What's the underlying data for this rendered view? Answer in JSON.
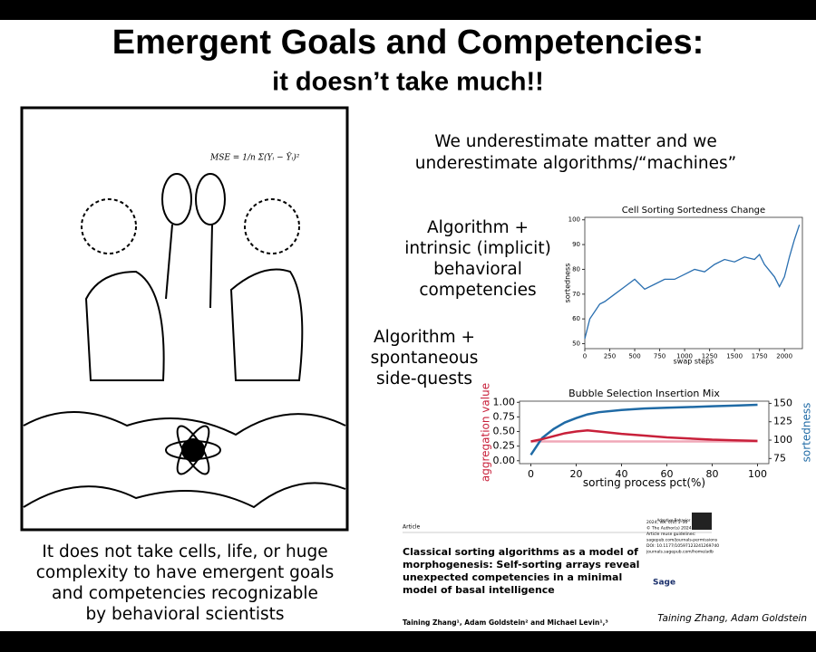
{
  "header": {
    "title": "Emergent Goals and Competencies:",
    "subtitle": "it doesn’t take much!!"
  },
  "cartoon": {
    "equation": "MSE = 1/n Σ(Yᵢ − Ŷᵢ)²"
  },
  "left_caption": [
    "It does not take cells, life, or huge",
    "complexity to have emergent goals",
    "and competencies recognizable",
    "by behavioral scientists"
  ],
  "statement": [
    "We underestimate matter and we",
    "underestimate algorithms/“machines”"
  ],
  "label_intrinsic": [
    "Algorithm +",
    "intrinsic (implicit)",
    "behavioral",
    "competencies"
  ],
  "label_sidequests": [
    "Algorithm +",
    "spontaneous",
    "side-quests"
  ],
  "chart_data": [
    {
      "type": "line",
      "title": "Cell Sorting Sortedness Change",
      "xlabel": "swap steps",
      "ylabel": "sortedness",
      "x": [
        0,
        50,
        100,
        150,
        200,
        300,
        400,
        500,
        600,
        700,
        800,
        900,
        1000,
        1100,
        1200,
        1300,
        1400,
        1500,
        1600,
        1700,
        1750,
        1800,
        1900,
        1950,
        2000,
        2050,
        2100,
        2150
      ],
      "series": [
        {
          "color": "#2a6fb0",
          "values": [
            52,
            60,
            63,
            66,
            67,
            70,
            73,
            76,
            72,
            74,
            76,
            76,
            78,
            80,
            79,
            82,
            84,
            83,
            85,
            84,
            86,
            82,
            77,
            73,
            77,
            85,
            92,
            98
          ]
        }
      ],
      "xlim": [
        0,
        2180
      ],
      "xticks": [
        0,
        250,
        500,
        750,
        1000,
        1250,
        1500,
        1750,
        2000
      ],
      "ylim": [
        48,
        101
      ],
      "yticks": [
        50,
        60,
        70,
        80,
        90,
        100
      ]
    },
    {
      "type": "line",
      "title": "Bubble Selection Insertion Mix",
      "xlabel": "sorting process pct(%)",
      "ylabel": "aggregation value",
      "y2label": "sortedness",
      "x": [
        0,
        5,
        10,
        15,
        20,
        25,
        30,
        40,
        50,
        60,
        70,
        80,
        90,
        100
      ],
      "series": [
        {
          "color": "#c8203a",
          "values": [
            0.33,
            0.37,
            0.42,
            0.47,
            0.5,
            0.52,
            0.5,
            0.46,
            0.43,
            0.4,
            0.38,
            0.36,
            0.35,
            0.34
          ]
        },
        {
          "color": "#1f6aa5",
          "axis": "y2",
          "values": [
            80,
            103,
            115,
            124,
            130,
            135,
            138,
            141,
            143,
            144,
            145,
            146,
            147,
            148
          ]
        },
        {
          "color": "#f0a8b8",
          "values": [
            0.33,
            0.33,
            0.33,
            0.33,
            0.33,
            0.33,
            0.33,
            0.33,
            0.33,
            0.33,
            0.33,
            0.33,
            0.33,
            0.33
          ]
        }
      ],
      "xlim": [
        -5,
        105
      ],
      "xticks": [
        0,
        20,
        40,
        60,
        80,
        100
      ],
      "ylim": [
        -0.05,
        1.02
      ],
      "yticks": [
        {
          "value": 0,
          "label": "0.00"
        },
        {
          "value": 0.25,
          "label": "0.25"
        },
        {
          "value": 0.5,
          "label": "0.50"
        },
        {
          "value": 0.75,
          "label": "0.75"
        },
        {
          "value": 1,
          "label": "1.00"
        }
      ],
      "y2lim": [
        68,
        153
      ],
      "y2ticks": [
        75,
        100,
        125,
        150
      ]
    }
  ],
  "paper": {
    "kind": "Article",
    "journal": "Adaptive Behavior",
    "info": [
      "Adaptive Behavior",
      "2024, Vol. 0(0) 1–30",
      "© The Author(s) 2024",
      "Article reuse guidelines:",
      "sagepub.com/journals-permissions",
      "DOI: 10.1177/10597123241269740",
      "journals.sagepub.com/home/adb"
    ],
    "publisher": "Sage",
    "title": [
      "Classical sorting algorithms as a model of",
      "morphogenesis: Self-sorting arrays reveal",
      "unexpected competencies in a minimal",
      "model of basal intelligence"
    ],
    "authors": "Taining Zhang¹, Adam Goldstein² and Michael Levin¹,³"
  },
  "credit": "Taining Zhang, Adam Goldstein"
}
